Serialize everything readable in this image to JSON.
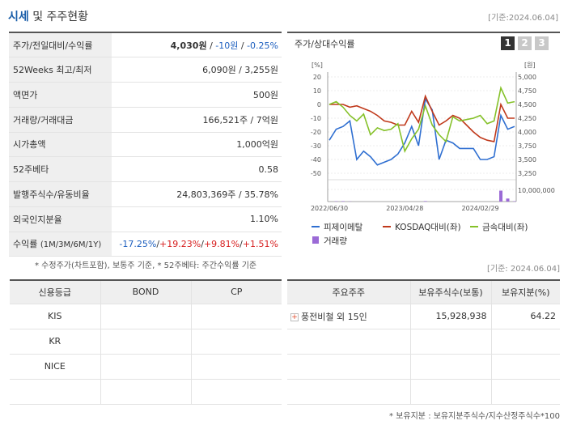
{
  "header": {
    "title_blue": "시세",
    "title_rest": " 및 주주현황",
    "date": "[기준:2024.06.04]"
  },
  "info": {
    "rows": [
      {
        "key": "주가/전일대비/수익률"
      },
      {
        "key": "52Weeks 최고/최저",
        "value": "6,090원 / 3,255원"
      },
      {
        "key": "액면가",
        "value": "500원"
      },
      {
        "key": "거래량/거래대금",
        "value": "166,521주 / 7억원"
      },
      {
        "key": "시가총액",
        "value": "1,000억원"
      },
      {
        "key": "52주베타",
        "value": "0.58"
      },
      {
        "key": "발행주식수/유동비율",
        "value": "24,803,369주 / 35.78%"
      },
      {
        "key": "외국인지분율",
        "value": "1.10%"
      },
      {
        "key": "수익률"
      }
    ],
    "price": "4,030원",
    "sep1": " / ",
    "change": "-10원",
    "sep2": " / ",
    "change_pct": "-0.25%",
    "return_key": "수익률",
    "return_period": "(1M/3M/6M/1Y)",
    "returns": [
      "-17.25%",
      "+19.23%",
      "+9.81%",
      "+1.51%"
    ],
    "return_sep": "/"
  },
  "note1": "* 수정주가(차트포함), 보통주 기준, * 52주베타: 주간수익률 기준",
  "chart": {
    "title": "주가/상대수익률",
    "buttons": [
      "1",
      "2",
      "3"
    ],
    "left_unit": "[%]",
    "right_unit": "[원]",
    "legend": [
      "피제이메탈",
      "KOSDAQ대비(좌)",
      "금속대비(좌)",
      "거래량"
    ]
  },
  "chart_data": {
    "type": "line",
    "x_tick_labels": [
      "2022/06/30",
      "2023/04/28",
      "2024/02/29"
    ],
    "y_left_ticks": [
      "20",
      "10",
      "0",
      "-10",
      "-20",
      "-30",
      "-40",
      "-50"
    ],
    "y_right_ticks": [
      "5,000",
      "4,750",
      "4,500",
      "4,250",
      "4,000",
      "3,750",
      "3,500",
      "3,250"
    ],
    "y_left_range": [
      -50,
      20
    ],
    "y_right_range": [
      3250,
      5000
    ],
    "volume_tick": "10,000,000",
    "volume_range": [
      0,
      10000000
    ],
    "series": [
      {
        "name": "피제이메탈",
        "axis": "right",
        "color": "#2f6fd1",
        "values": [
          3850,
          4050,
          4100,
          4200,
          3500,
          3650,
          3550,
          3400,
          3450,
          3500,
          3600,
          3800,
          4100,
          3750,
          4600,
          4400,
          3500,
          3850,
          3800,
          3700,
          3700,
          3700,
          3500,
          3500,
          3550,
          4300,
          4050,
          4100
        ]
      },
      {
        "name": "KOSDAQ대비(좌)",
        "axis": "left",
        "color": "#c0391b",
        "values": [
          0,
          0,
          0,
          -2,
          -1,
          -3,
          -5,
          -8,
          -12,
          -13,
          -15,
          -15,
          -5,
          -13,
          6,
          -5,
          -15,
          -12,
          -8,
          -10,
          -15,
          -20,
          -24,
          -26,
          -27,
          0,
          -10,
          -10
        ]
      },
      {
        "name": "금속대비(좌)",
        "axis": "left",
        "color": "#85c129",
        "values": [
          0,
          2,
          -2,
          -8,
          -12,
          -7,
          -22,
          -17,
          -19,
          -18,
          -14,
          -34,
          -25,
          -18,
          -1,
          -15,
          -22,
          -27,
          -9,
          -12,
          -11,
          -10,
          -8,
          -14,
          -12,
          12,
          1,
          2
        ]
      },
      {
        "name": "거래량",
        "axis": "volume",
        "color": "#9b6ad6",
        "values": [
          0,
          250000,
          350000,
          150000,
          0,
          0,
          0,
          0,
          0,
          0,
          0,
          0,
          0,
          0,
          400000,
          0,
          0,
          0,
          0,
          0,
          0,
          0,
          0,
          0,
          0,
          9000000,
          2500000,
          300000
        ]
      }
    ]
  },
  "date2": "[기준: 2024.06.04]",
  "credit": {
    "headers": [
      "신용등급",
      "BOND",
      "CP"
    ],
    "rows": [
      [
        "KIS",
        "",
        ""
      ],
      [
        "KR",
        "",
        ""
      ],
      [
        "NICE",
        "",
        ""
      ],
      [
        "",
        "",
        ""
      ]
    ]
  },
  "holders": {
    "headers": [
      "주요주주",
      "보유주식수(보통)",
      "보유지분(%)"
    ],
    "row": {
      "name": "풍전비철 외 15인",
      "shares": "15,928,938",
      "pct": "64.22"
    },
    "plus_icon": "plus-icon",
    "note": "* 보유지분 : 보유지분주식수/지수산정주식수*100"
  }
}
